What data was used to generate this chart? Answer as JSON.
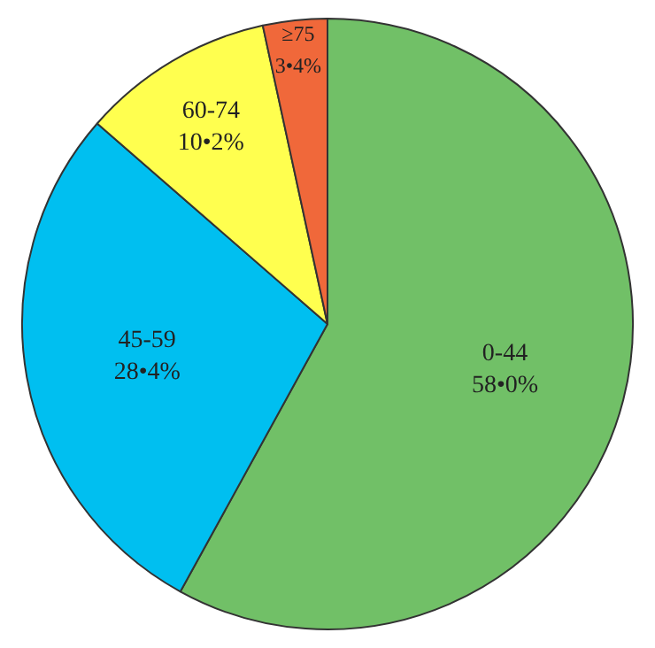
{
  "chart_data": {
    "type": "pie",
    "categories": [
      "0-44",
      "45-59",
      "60-74",
      "≥75"
    ],
    "values": [
      58.0,
      28.4,
      10.2,
      3.4
    ],
    "value_labels": [
      "58•0%",
      "28•4%",
      "10•2%",
      "3•4%"
    ],
    "colors": [
      "#71c067",
      "#00bff0",
      "#ffff4f",
      "#f0683a"
    ],
    "legend": false
  }
}
